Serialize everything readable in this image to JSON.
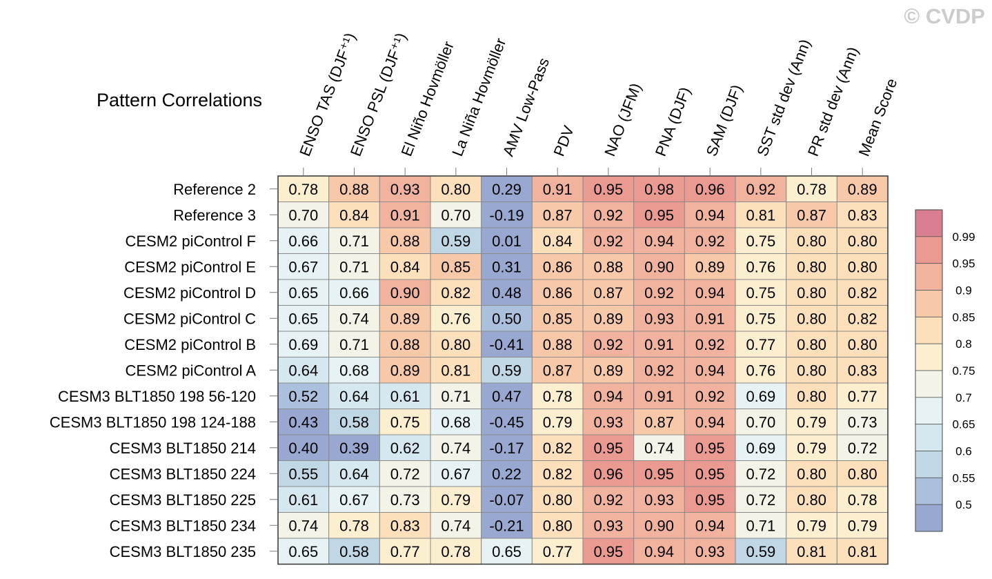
{
  "watermark": "© CVDP",
  "chart_data": {
    "type": "heatmap",
    "title": "Pattern Correlations",
    "columns": [
      "ENSO TAS (DJF⁺¹)",
      "ENSO PSL (DJF⁺¹)",
      "El Niño Hovmöller",
      "La Niña Hovmöller",
      "AMV Low-Pass",
      "PDV",
      "NAO (JFM)",
      "PNA (DJF)",
      "SAM (DJF)",
      "SST std dev (Ann)",
      "PR std dev (Ann)",
      "Mean Score"
    ],
    "rows": [
      "Reference 2",
      "Reference 3",
      "CESM2 piControl F",
      "CESM2 piControl E",
      "CESM2 piControl D",
      "CESM2 piControl C",
      "CESM2 piControl B",
      "CESM2 piControl A",
      "CESM3 BLT1850 198 56-120",
      "CESM3 BLT1850 198 124-188",
      "CESM3 BLT1850 214",
      "CESM3 BLT1850 224",
      "CESM3 BLT1850 225",
      "CESM3 BLT1850 234",
      "CESM3 BLT1850 235"
    ],
    "values": [
      [
        "0.78",
        "0.88",
        "0.93",
        "0.80",
        "0.29",
        "0.91",
        "0.95",
        "0.98",
        "0.96",
        "0.92",
        "0.78",
        "0.89"
      ],
      [
        "0.70",
        "0.84",
        "0.91",
        "0.70",
        "-0.19",
        "0.87",
        "0.92",
        "0.95",
        "0.94",
        "0.81",
        "0.87",
        "0.83"
      ],
      [
        "0.66",
        "0.71",
        "0.88",
        "0.59",
        "0.01",
        "0.84",
        "0.92",
        "0.94",
        "0.92",
        "0.75",
        "0.80",
        "0.80"
      ],
      [
        "0.67",
        "0.71",
        "0.84",
        "0.85",
        "0.31",
        "0.86",
        "0.88",
        "0.90",
        "0.89",
        "0.76",
        "0.80",
        "0.80"
      ],
      [
        "0.65",
        "0.66",
        "0.90",
        "0.82",
        "0.48",
        "0.86",
        "0.87",
        "0.92",
        "0.94",
        "0.75",
        "0.80",
        "0.82"
      ],
      [
        "0.65",
        "0.74",
        "0.89",
        "0.76",
        "0.50",
        "0.85",
        "0.89",
        "0.93",
        "0.91",
        "0.75",
        "0.80",
        "0.82"
      ],
      [
        "0.69",
        "0.71",
        "0.88",
        "0.80",
        "-0.41",
        "0.88",
        "0.92",
        "0.91",
        "0.92",
        "0.77",
        "0.80",
        "0.80"
      ],
      [
        "0.64",
        "0.68",
        "0.89",
        "0.81",
        "0.59",
        "0.87",
        "0.89",
        "0.92",
        "0.94",
        "0.76",
        "0.80",
        "0.83"
      ],
      [
        "0.52",
        "0.64",
        "0.61",
        "0.71",
        "0.47",
        "0.78",
        "0.94",
        "0.91",
        "0.92",
        "0.69",
        "0.80",
        "0.77"
      ],
      [
        "0.43",
        "0.58",
        "0.75",
        "0.68",
        "-0.45",
        "0.79",
        "0.93",
        "0.87",
        "0.94",
        "0.70",
        "0.79",
        "0.73"
      ],
      [
        "0.40",
        "0.39",
        "0.62",
        "0.74",
        "-0.17",
        "0.82",
        "0.95",
        "0.74",
        "0.95",
        "0.69",
        "0.79",
        "0.72"
      ],
      [
        "0.55",
        "0.64",
        "0.72",
        "0.67",
        "0.22",
        "0.82",
        "0.96",
        "0.95",
        "0.95",
        "0.72",
        "0.80",
        "0.80"
      ],
      [
        "0.61",
        "0.67",
        "0.73",
        "0.79",
        "-0.07",
        "0.80",
        "0.92",
        "0.93",
        "0.95",
        "0.72",
        "0.80",
        "0.78"
      ],
      [
        "0.74",
        "0.78",
        "0.83",
        "0.74",
        "-0.21",
        "0.80",
        "0.93",
        "0.90",
        "0.94",
        "0.71",
        "0.79",
        "0.79"
      ],
      [
        "0.65",
        "0.58",
        "0.77",
        "0.78",
        "0.65",
        "0.77",
        "0.95",
        "0.94",
        "0.93",
        "0.59",
        "0.81",
        "0.81"
      ]
    ],
    "colorbar": {
      "levels": [
        0.5,
        0.55,
        0.6,
        0.65,
        0.7,
        0.75,
        0.8,
        0.85,
        0.9,
        0.95,
        0.99
      ],
      "labels": [
        "0.5",
        "0.55",
        "0.6",
        "0.65",
        "0.7",
        "0.75",
        "0.8",
        "0.85",
        "0.9",
        "0.95",
        "0.99"
      ],
      "colors": [
        "#98a8d0",
        "#aac0dc",
        "#c0d8e6",
        "#d6e8ef",
        "#e6f2f4",
        "#f3f3e8",
        "#fcefd0",
        "#fce0bc",
        "#f8c9a8",
        "#f2b39e",
        "#eb9a92",
        "#d87e90"
      ]
    }
  }
}
